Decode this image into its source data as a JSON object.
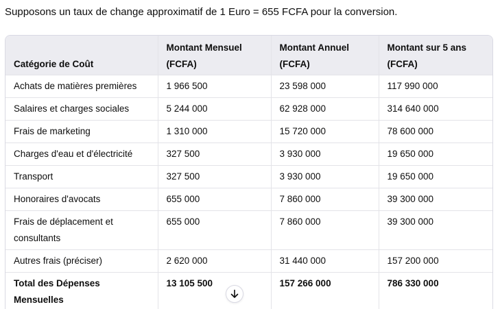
{
  "intro_text": "Supposons un taux de change approximatif de 1 Euro = 655 FCFA pour la conversion.",
  "table": {
    "headers": [
      {
        "line1": "Catégorie de Coût",
        "line2": ""
      },
      {
        "line1": "Montant Mensuel",
        "line2": "(FCFA)"
      },
      {
        "line1": "Montant Annuel",
        "line2": "(FCFA)"
      },
      {
        "line1": "Montant sur 5 ans",
        "line2": "(FCFA)"
      }
    ],
    "rows": [
      [
        "Achats de matières premières",
        "1 966 500",
        "23 598 000",
        "117 990 000"
      ],
      [
        "Salaires et charges sociales",
        "5 244 000",
        "62 928 000",
        "314 640 000"
      ],
      [
        "Frais de marketing",
        "1 310 000",
        "15 720 000",
        "78 600 000"
      ],
      [
        "Charges d'eau et d'électricité",
        "327 500",
        "3 930 000",
        "19 650 000"
      ],
      [
        "Transport",
        "327 500",
        "3 930 000",
        "19 650 000"
      ],
      [
        "Honoraires d'avocats",
        "655 000",
        "7 860 000",
        "39 300 000"
      ],
      [
        "Frais de déplacement et consultants",
        "655 000",
        "7 860 000",
        "39 300 000"
      ],
      [
        "Autres frais (préciser)",
        "2 620 000",
        "31 440 000",
        "157 200 000"
      ],
      [
        "Total des Dépenses Mensuelles",
        "13 105 500",
        "157 266 000",
        "786 330 000"
      ]
    ]
  },
  "scroll_button": {
    "icon": "arrow-down-icon"
  }
}
